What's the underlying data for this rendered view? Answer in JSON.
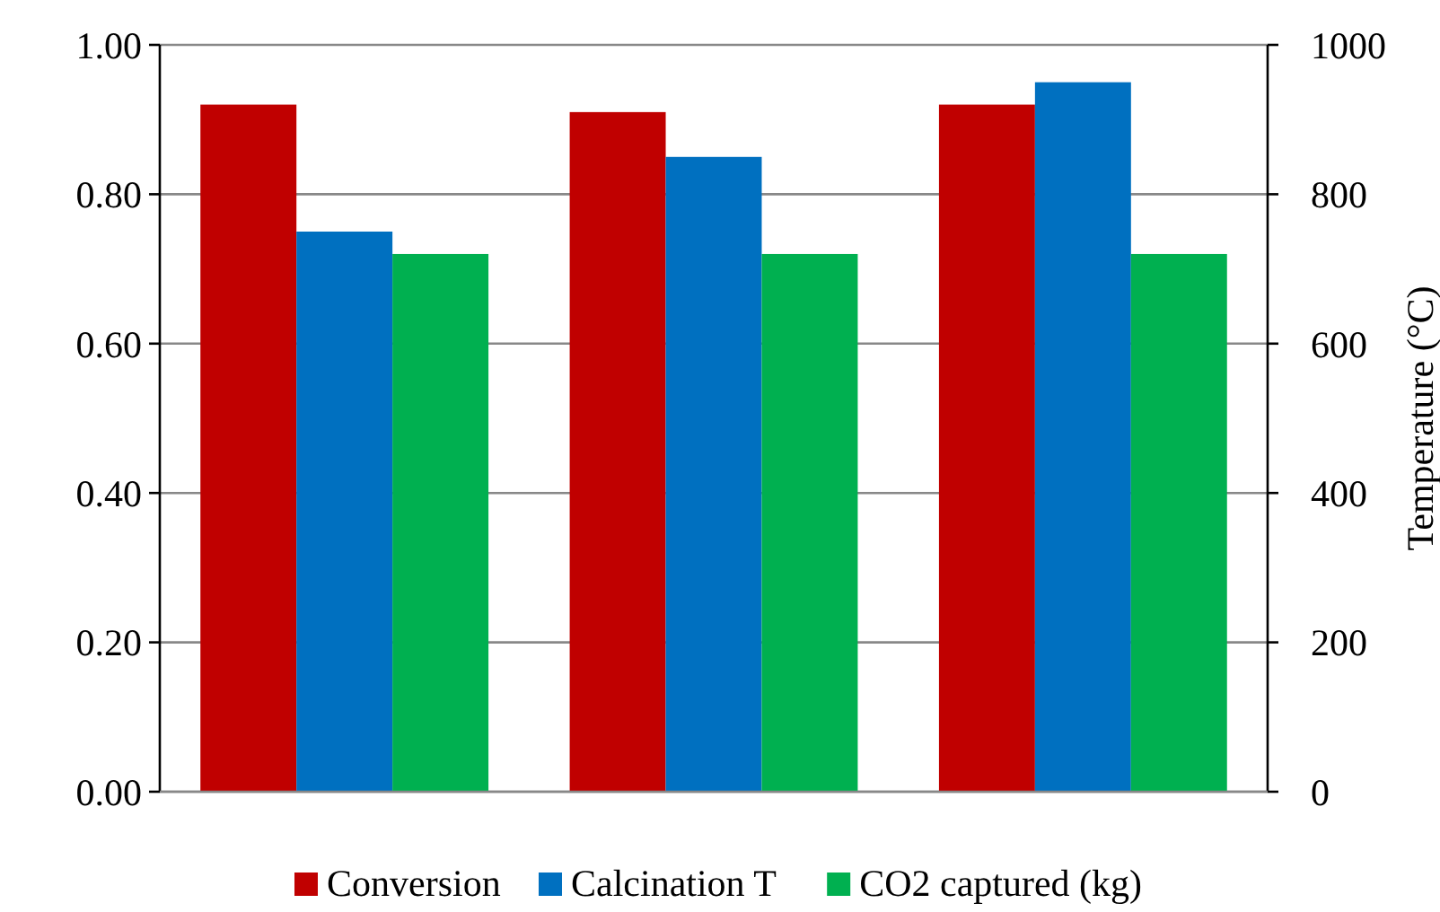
{
  "chart_data": {
    "type": "bar",
    "categories": [
      null,
      null,
      null
    ],
    "series": [
      {
        "name": "Conversion",
        "color": "#c00000",
        "values": [
          0.92,
          0.91,
          0.92
        ]
      },
      {
        "name": "Calcination T",
        "color": "#0070c0",
        "values": [
          750,
          850,
          950
        ],
        "axis": "y2"
      },
      {
        "name": "CO2 captured (kg)",
        "color": "#00b050",
        "values": [
          0.72,
          0.72,
          0.72
        ]
      }
    ],
    "ylim": [
      0,
      1
    ],
    "yticks": [
      {
        "value": 0,
        "label": "0.00"
      },
      {
        "value": 0.2,
        "label": "0.20"
      },
      {
        "value": 0.4,
        "label": "0.40"
      },
      {
        "value": 0.6,
        "label": "0.60"
      },
      {
        "value": 0.8,
        "label": "0.80"
      },
      {
        "value": 1,
        "label": "1.00"
      }
    ],
    "y2lim": [
      0,
      1000
    ],
    "y2ticks": [
      0,
      200,
      400,
      600,
      800,
      1000
    ],
    "y2label": "Temperature (°C)",
    "grid": "y",
    "legend": "bottom"
  }
}
